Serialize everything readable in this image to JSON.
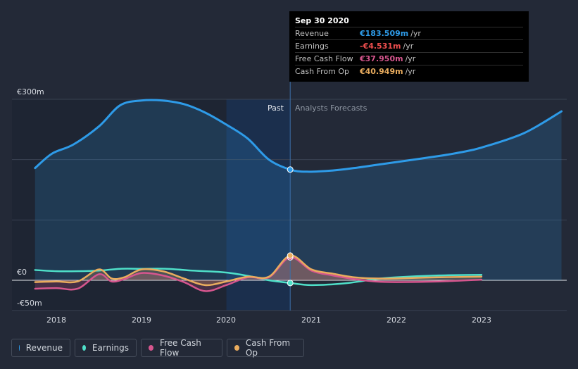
{
  "chart_data": {
    "type": "area-line",
    "y_axis": {
      "min": -50,
      "max": 300,
      "unit": "€m",
      "labels": [
        "€300m",
        "€0",
        "-€50m"
      ],
      "label_values": [
        300,
        0,
        -50
      ]
    },
    "x_axis": {
      "labels": [
        "2018",
        "2019",
        "2020",
        "2021",
        "2022",
        "2023"
      ],
      "label_values": [
        2018,
        2019,
        2020,
        2021,
        2022,
        2023
      ],
      "range": [
        2017.69,
        2023.94
      ]
    },
    "divider_x": 2020.75,
    "forecast_band_start": 2020.0,
    "past_label": "Past",
    "forecast_label": "Analysts Forecasts",
    "series": [
      {
        "name": "Revenue",
        "color": "#2e9be8",
        "fill": true,
        "points": [
          [
            2017.75,
            186
          ],
          [
            2017.95,
            210
          ],
          [
            2018.2,
            225
          ],
          [
            2018.5,
            255
          ],
          [
            2018.75,
            290
          ],
          [
            2019.0,
            298
          ],
          [
            2019.25,
            298
          ],
          [
            2019.5,
            292
          ],
          [
            2019.75,
            278
          ],
          [
            2020.0,
            258
          ],
          [
            2020.25,
            235
          ],
          [
            2020.5,
            200
          ],
          [
            2020.75,
            183.5
          ],
          [
            2020.95,
            180
          ],
          [
            2021.25,
            182
          ],
          [
            2021.5,
            186
          ],
          [
            2021.75,
            191
          ],
          [
            2022.0,
            196
          ],
          [
            2022.5,
            206
          ],
          [
            2022.75,
            212
          ],
          [
            2023.0,
            220
          ],
          [
            2023.5,
            244
          ],
          [
            2023.94,
            280
          ]
        ],
        "marker": [
          2020.75,
          183.509
        ]
      },
      {
        "name": "Earnings",
        "color": "#4fe0c9",
        "fill": false,
        "points": [
          [
            2017.75,
            17
          ],
          [
            2018.0,
            15
          ],
          [
            2018.25,
            15
          ],
          [
            2018.5,
            16
          ],
          [
            2018.75,
            19
          ],
          [
            2019.0,
            19
          ],
          [
            2019.3,
            19
          ],
          [
            2019.6,
            16
          ],
          [
            2019.9,
            14
          ],
          [
            2020.1,
            11
          ],
          [
            2020.3,
            6
          ],
          [
            2020.5,
            0
          ],
          [
            2020.75,
            -4.5
          ],
          [
            2021.0,
            -8
          ],
          [
            2021.4,
            -5
          ],
          [
            2021.75,
            2
          ],
          [
            2022.0,
            5
          ],
          [
            2022.5,
            8
          ],
          [
            2023.0,
            9
          ]
        ],
        "marker": [
          2020.75,
          -4.531
        ]
      },
      {
        "name": "Free Cash Flow",
        "color": "#d6568e",
        "fill": true,
        "points": [
          [
            2017.75,
            -14
          ],
          [
            2018.0,
            -13
          ],
          [
            2018.25,
            -14
          ],
          [
            2018.5,
            10
          ],
          [
            2018.65,
            -2
          ],
          [
            2018.8,
            2
          ],
          [
            2019.0,
            12
          ],
          [
            2019.25,
            8
          ],
          [
            2019.5,
            -3
          ],
          [
            2019.75,
            -18
          ],
          [
            2020.0,
            -8
          ],
          [
            2020.25,
            5
          ],
          [
            2020.5,
            5
          ],
          [
            2020.75,
            37.95
          ],
          [
            2021.0,
            16
          ],
          [
            2021.25,
            8
          ],
          [
            2021.5,
            2
          ],
          [
            2021.75,
            -2
          ],
          [
            2022.0,
            -3
          ],
          [
            2022.5,
            -2
          ],
          [
            2023.0,
            1
          ]
        ],
        "marker": [
          2020.75,
          37.95
        ]
      },
      {
        "name": "Cash From Op",
        "color": "#e9ac5e",
        "fill": true,
        "points": [
          [
            2017.75,
            -3
          ],
          [
            2018.0,
            -2
          ],
          [
            2018.25,
            -2
          ],
          [
            2018.5,
            18
          ],
          [
            2018.65,
            3
          ],
          [
            2018.8,
            5
          ],
          [
            2019.0,
            18
          ],
          [
            2019.25,
            15
          ],
          [
            2019.5,
            3
          ],
          [
            2019.75,
            -8
          ],
          [
            2020.0,
            -2
          ],
          [
            2020.25,
            6
          ],
          [
            2020.5,
            6
          ],
          [
            2020.75,
            40.949
          ],
          [
            2021.0,
            18
          ],
          [
            2021.25,
            11
          ],
          [
            2021.5,
            5
          ],
          [
            2021.75,
            3
          ],
          [
            2022.0,
            3
          ],
          [
            2022.5,
            5
          ],
          [
            2023.0,
            6
          ]
        ],
        "marker": [
          2020.75,
          40.949
        ]
      }
    ]
  },
  "tooltip": {
    "date": "Sep 30 2020",
    "rows": [
      {
        "label": "Revenue",
        "value": "€183.509m",
        "unit": "/yr",
        "color": "#2e9be8"
      },
      {
        "label": "Earnings",
        "value": "-€4.531m",
        "unit": "/yr",
        "color": "#ee4e4e"
      },
      {
        "label": "Free Cash Flow",
        "value": "€37.950m",
        "unit": "/yr",
        "color": "#d6568e"
      },
      {
        "label": "Cash From Op",
        "value": "€40.949m",
        "unit": "/yr",
        "color": "#e9ac5e"
      }
    ]
  },
  "legend": [
    {
      "label": "Revenue",
      "color": "#2e9be8"
    },
    {
      "label": "Earnings",
      "color": "#4fe0c9"
    },
    {
      "label": "Free Cash Flow",
      "color": "#d6568e"
    },
    {
      "label": "Cash From Op",
      "color": "#e9ac5e"
    }
  ]
}
